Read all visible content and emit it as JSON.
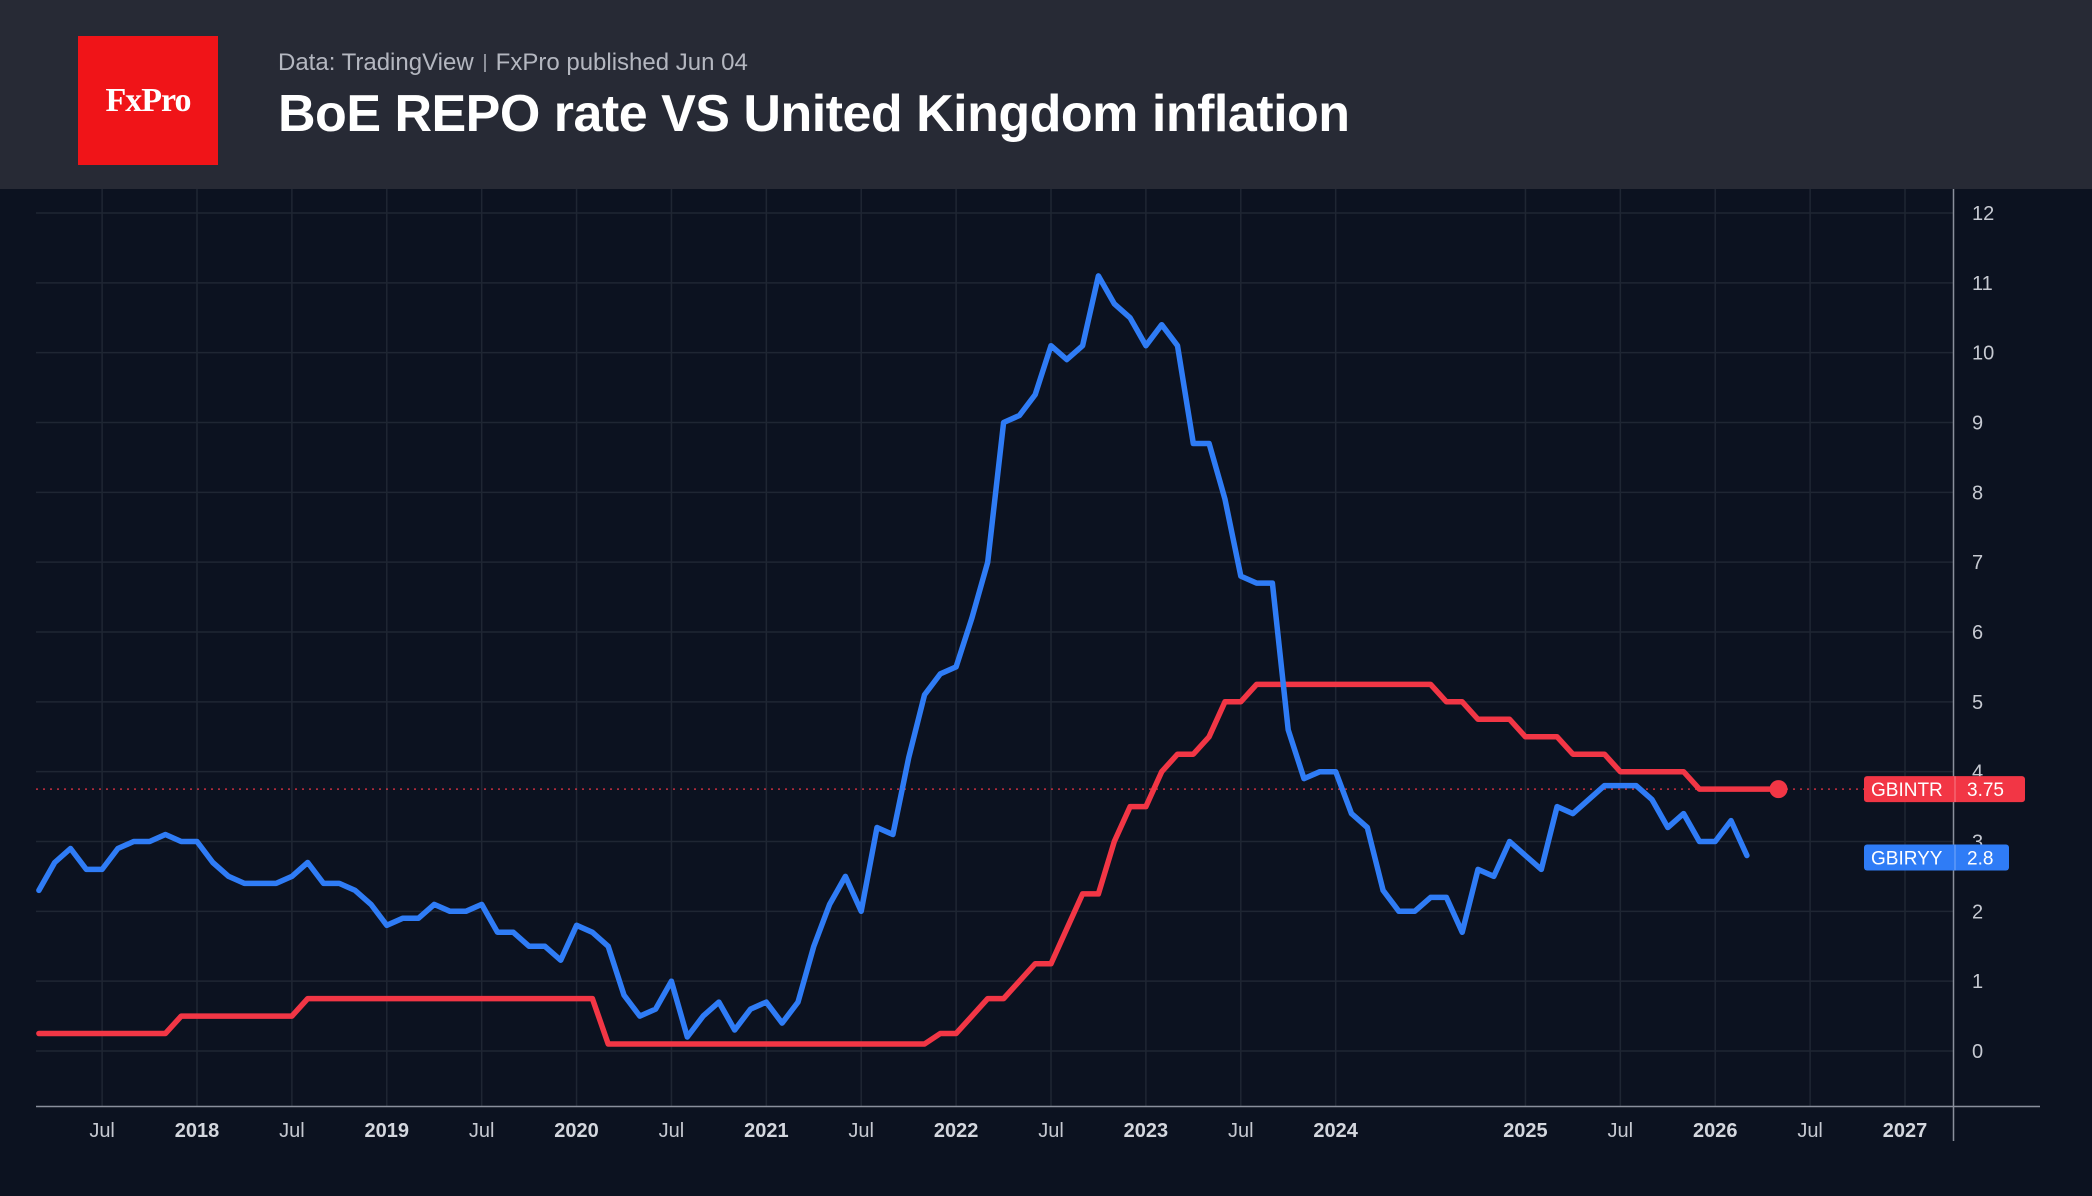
{
  "header": {
    "logo_text": "FxPro",
    "source": "Data: TradingView",
    "published": "FxPro published Jun 04",
    "title": "BoE REPO rate VS United Kingdom inflation"
  },
  "colors": {
    "background": "#0c1220",
    "header": "#272a35",
    "logo": "#f01418",
    "repo": "#f23645",
    "cpi": "#2f7cf6",
    "grid": "#1f2633"
  },
  "chart_data": {
    "type": "line",
    "title": "BoE REPO rate VS United Kingdom inflation",
    "x_unit": "date (YYYY-MM)",
    "ylim": [
      -0.8,
      12.3
    ],
    "y_ticks": [
      0,
      1,
      2,
      3,
      4,
      5,
      6,
      7,
      8,
      9,
      10,
      11,
      12
    ],
    "x_ticks": [
      {
        "date": "2017-07",
        "label": "Jul",
        "year": false
      },
      {
        "date": "2018-01",
        "label": "2018",
        "year": true
      },
      {
        "date": "2018-07",
        "label": "Jul",
        "year": false
      },
      {
        "date": "2019-01",
        "label": "2019",
        "year": true
      },
      {
        "date": "2019-07",
        "label": "Jul",
        "year": false
      },
      {
        "date": "2020-01",
        "label": "2020",
        "year": true
      },
      {
        "date": "2020-07",
        "label": "Jul",
        "year": false
      },
      {
        "date": "2021-01",
        "label": "2021",
        "year": true
      },
      {
        "date": "2021-07",
        "label": "Jul",
        "year": false
      },
      {
        "date": "2022-01",
        "label": "2022",
        "year": true
      },
      {
        "date": "2022-07",
        "label": "Jul",
        "year": false
      },
      {
        "date": "2023-01",
        "label": "2023",
        "year": true
      },
      {
        "date": "2023-07",
        "label": "Jul",
        "year": false
      },
      {
        "date": "2024-01",
        "label": "2024",
        "year": true
      },
      {
        "date": "2025-01",
        "label": "2025",
        "year": true
      },
      {
        "date": "2025-07",
        "label": "Jul",
        "year": false
      },
      {
        "date": "2026-01",
        "label": "2026",
        "year": true
      },
      {
        "date": "2026-07",
        "label": "Jul",
        "year": false
      },
      {
        "date": "2027-01",
        "label": "2027",
        "year": true
      }
    ],
    "grid": true,
    "series": [
      {
        "name": "GBINTR",
        "last_value": "3.75",
        "color": "#f23645",
        "points": [
          [
            "2017-03",
            0.25
          ],
          [
            "2017-11",
            0.25
          ],
          [
            "2017-12",
            0.5
          ],
          [
            "2018-07",
            0.5
          ],
          [
            "2018-08",
            0.75
          ],
          [
            "2020-02",
            0.75
          ],
          [
            "2020-03",
            0.1
          ],
          [
            "2021-11",
            0.1
          ],
          [
            "2021-12",
            0.25
          ],
          [
            "2022-01",
            0.25
          ],
          [
            "2022-02",
            0.5
          ],
          [
            "2022-03",
            0.75
          ],
          [
            "2022-04",
            0.75
          ],
          [
            "2022-05",
            1.0
          ],
          [
            "2022-06",
            1.25
          ],
          [
            "2022-07",
            1.25
          ],
          [
            "2022-08",
            1.75
          ],
          [
            "2022-09",
            2.25
          ],
          [
            "2022-10",
            2.25
          ],
          [
            "2022-11",
            3.0
          ],
          [
            "2022-12",
            3.5
          ],
          [
            "2023-01",
            3.5
          ],
          [
            "2023-02",
            4.0
          ],
          [
            "2023-03",
            4.25
          ],
          [
            "2023-04",
            4.25
          ],
          [
            "2023-05",
            4.5
          ],
          [
            "2023-06",
            5.0
          ],
          [
            "2023-07",
            5.0
          ],
          [
            "2023-08",
            5.25
          ],
          [
            "2024-07",
            5.25
          ],
          [
            "2024-08",
            5.0
          ],
          [
            "2024-09",
            5.0
          ],
          [
            "2024-10",
            4.75
          ],
          [
            "2024-12",
            4.75
          ],
          [
            "2025-01",
            4.5
          ],
          [
            "2025-03",
            4.5
          ],
          [
            "2025-04",
            4.25
          ],
          [
            "2025-06",
            4.25
          ],
          [
            "2025-07",
            4.0
          ],
          [
            "2025-11",
            4.0
          ],
          [
            "2025-12",
            3.75
          ],
          [
            "2026-05",
            3.75
          ]
        ]
      },
      {
        "name": "GBIRYY",
        "last_value": "2.8",
        "color": "#2f7cf6",
        "points": [
          [
            "2017-03",
            2.3
          ],
          [
            "2017-04",
            2.7
          ],
          [
            "2017-05",
            2.9
          ],
          [
            "2017-06",
            2.6
          ],
          [
            "2017-07",
            2.6
          ],
          [
            "2017-08",
            2.9
          ],
          [
            "2017-09",
            3.0
          ],
          [
            "2017-10",
            3.0
          ],
          [
            "2017-11",
            3.1
          ],
          [
            "2017-12",
            3.0
          ],
          [
            "2018-01",
            3.0
          ],
          [
            "2018-02",
            2.7
          ],
          [
            "2018-03",
            2.5
          ],
          [
            "2018-04",
            2.4
          ],
          [
            "2018-05",
            2.4
          ],
          [
            "2018-06",
            2.4
          ],
          [
            "2018-07",
            2.5
          ],
          [
            "2018-08",
            2.7
          ],
          [
            "2018-09",
            2.4
          ],
          [
            "2018-10",
            2.4
          ],
          [
            "2018-11",
            2.3
          ],
          [
            "2018-12",
            2.1
          ],
          [
            "2019-01",
            1.8
          ],
          [
            "2019-02",
            1.9
          ],
          [
            "2019-03",
            1.9
          ],
          [
            "2019-04",
            2.1
          ],
          [
            "2019-05",
            2.0
          ],
          [
            "2019-06",
            2.0
          ],
          [
            "2019-07",
            2.1
          ],
          [
            "2019-08",
            1.7
          ],
          [
            "2019-09",
            1.7
          ],
          [
            "2019-10",
            1.5
          ],
          [
            "2019-11",
            1.5
          ],
          [
            "2019-12",
            1.3
          ],
          [
            "2020-01",
            1.8
          ],
          [
            "2020-02",
            1.7
          ],
          [
            "2020-03",
            1.5
          ],
          [
            "2020-04",
            0.8
          ],
          [
            "2020-05",
            0.5
          ],
          [
            "2020-06",
            0.6
          ],
          [
            "2020-07",
            1.0
          ],
          [
            "2020-08",
            0.2
          ],
          [
            "2020-09",
            0.5
          ],
          [
            "2020-10",
            0.7
          ],
          [
            "2020-11",
            0.3
          ],
          [
            "2020-12",
            0.6
          ],
          [
            "2021-01",
            0.7
          ],
          [
            "2021-02",
            0.4
          ],
          [
            "2021-03",
            0.7
          ],
          [
            "2021-04",
            1.5
          ],
          [
            "2021-05",
            2.1
          ],
          [
            "2021-06",
            2.5
          ],
          [
            "2021-07",
            2.0
          ],
          [
            "2021-08",
            3.2
          ],
          [
            "2021-09",
            3.1
          ],
          [
            "2021-10",
            4.2
          ],
          [
            "2021-11",
            5.1
          ],
          [
            "2021-12",
            5.4
          ],
          [
            "2022-01",
            5.5
          ],
          [
            "2022-02",
            6.2
          ],
          [
            "2022-03",
            7.0
          ],
          [
            "2022-04",
            9.0
          ],
          [
            "2022-05",
            9.1
          ],
          [
            "2022-06",
            9.4
          ],
          [
            "2022-07",
            10.1
          ],
          [
            "2022-08",
            9.9
          ],
          [
            "2022-09",
            10.1
          ],
          [
            "2022-10",
            11.1
          ],
          [
            "2022-11",
            10.7
          ],
          [
            "2022-12",
            10.5
          ],
          [
            "2023-01",
            10.1
          ],
          [
            "2023-02",
            10.4
          ],
          [
            "2023-03",
            10.1
          ],
          [
            "2023-04",
            8.7
          ],
          [
            "2023-05",
            8.7
          ],
          [
            "2023-06",
            7.9
          ],
          [
            "2023-07",
            6.8
          ],
          [
            "2023-08",
            6.7
          ],
          [
            "2023-09",
            6.7
          ],
          [
            "2023-10",
            4.6
          ],
          [
            "2023-11",
            3.9
          ],
          [
            "2023-12",
            4.0
          ],
          [
            "2024-01",
            4.0
          ],
          [
            "2024-02",
            3.4
          ],
          [
            "2024-03",
            3.2
          ],
          [
            "2024-04",
            2.3
          ],
          [
            "2024-05",
            2.0
          ],
          [
            "2024-06",
            2.0
          ],
          [
            "2024-07",
            2.2
          ],
          [
            "2024-08",
            2.2
          ],
          [
            "2024-09",
            1.7
          ],
          [
            "2024-10",
            2.6
          ],
          [
            "2024-11",
            2.5
          ],
          [
            "2024-12",
            3.0
          ],
          [
            "2025-01",
            2.8
          ],
          [
            "2025-02",
            2.6
          ],
          [
            "2025-03",
            3.5
          ],
          [
            "2025-04",
            3.4
          ],
          [
            "2025-05",
            3.6
          ],
          [
            "2025-06",
            3.8
          ],
          [
            "2025-07",
            3.8
          ],
          [
            "2025-08",
            3.8
          ],
          [
            "2025-09",
            3.6
          ],
          [
            "2025-10",
            3.2
          ],
          [
            "2025-11",
            3.4
          ],
          [
            "2025-12",
            3.0
          ],
          [
            "2026-01",
            3.0
          ],
          [
            "2026-02",
            3.3
          ],
          [
            "2026-03",
            2.8
          ]
        ]
      }
    ]
  }
}
